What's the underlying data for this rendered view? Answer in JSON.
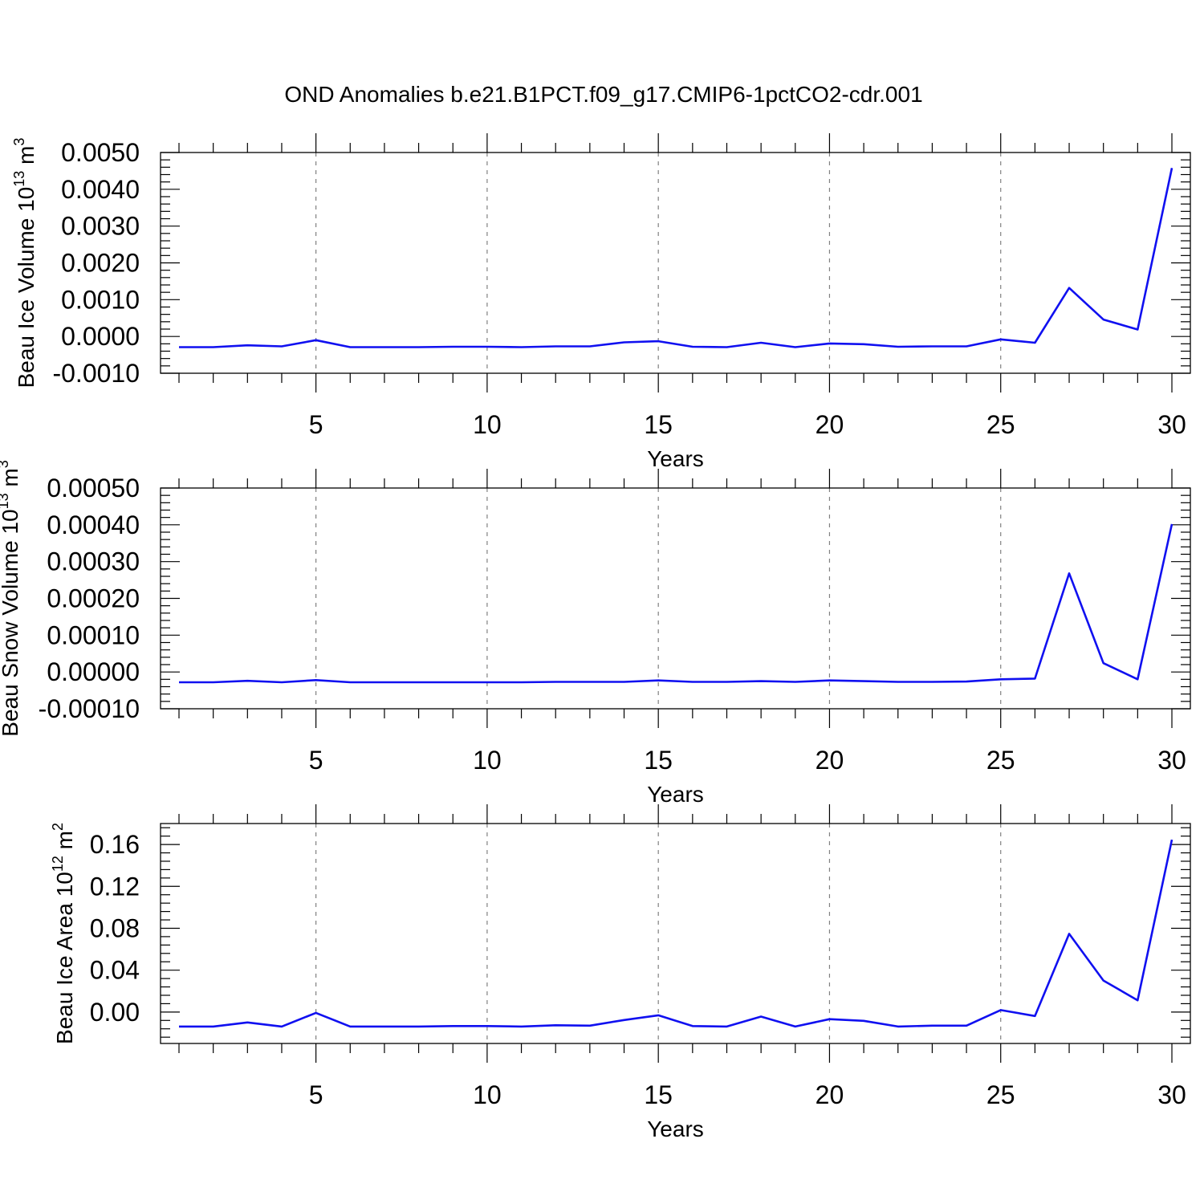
{
  "title": "OND Anomalies b.e21.B1PCT.f09_g17.CMIP6-1pctCO2-cdr.001",
  "colors": {
    "series_line": "#1010f0",
    "axis": "#000000",
    "grid": "#808080"
  },
  "chart_data": [
    {
      "type": "line",
      "ylabel": {
        "base": "Beau Ice Volume 10",
        "exp": "13",
        "unit": " m",
        "unit_exp": "3"
      },
      "xlabel": "Years",
      "xlim": [
        1,
        30
      ],
      "ylim": [
        -0.001,
        0.005
      ],
      "yticks": [
        -0.001,
        0.0,
        0.001,
        0.002,
        0.003,
        0.004,
        0.005
      ],
      "ytick_labels": [
        "-0.0010",
        "0.0000",
        "0.0010",
        "0.0020",
        "0.0030",
        "0.0040",
        "0.0050"
      ],
      "xticks": [
        5,
        10,
        15,
        20,
        25,
        30
      ],
      "xtick_labels": [
        "5",
        "10",
        "15",
        "20",
        "25",
        "30"
      ],
      "grid": "vertical dashed at major x ticks",
      "x": [
        1,
        2,
        3,
        4,
        5,
        6,
        7,
        8,
        9,
        10,
        11,
        12,
        13,
        14,
        15,
        16,
        17,
        18,
        19,
        20,
        21,
        22,
        23,
        24,
        25,
        26,
        27,
        28,
        29,
        30
      ],
      "values": [
        -0.00029,
        -0.00029,
        -0.00024,
        -0.00027,
        -0.0001,
        -0.00029,
        -0.00029,
        -0.00029,
        -0.00028,
        -0.00028,
        -0.00029,
        -0.00027,
        -0.00027,
        -0.00016,
        -0.00013,
        -0.00028,
        -0.00029,
        -0.00017,
        -0.00029,
        -0.00019,
        -0.00021,
        -0.00028,
        -0.00027,
        -0.00027,
        -8e-05,
        -0.00017,
        0.00132,
        0.00046,
        0.00019,
        0.00458
      ]
    },
    {
      "type": "line",
      "ylabel": {
        "base": "Beau Snow Volume 10",
        "exp": "13",
        "unit": " m",
        "unit_exp": "3"
      },
      "xlabel": "Years",
      "xlim": [
        1,
        30
      ],
      "ylim": [
        -0.0001,
        0.0005
      ],
      "yticks": [
        -0.0001,
        0.0,
        0.0001,
        0.0002,
        0.0003,
        0.0004,
        0.0005
      ],
      "ytick_labels": [
        "-0.00010",
        "0.00000",
        "0.00010",
        "0.00020",
        "0.00030",
        "0.00040",
        "0.00050"
      ],
      "xticks": [
        5,
        10,
        15,
        20,
        25,
        30
      ],
      "xtick_labels": [
        "5",
        "10",
        "15",
        "20",
        "25",
        "30"
      ],
      "grid": "vertical dashed at major x ticks",
      "x": [
        1,
        2,
        3,
        4,
        5,
        6,
        7,
        8,
        9,
        10,
        11,
        12,
        13,
        14,
        15,
        16,
        17,
        18,
        19,
        20,
        21,
        22,
        23,
        24,
        25,
        26,
        27,
        28,
        29,
        30
      ],
      "values": [
        -2.8e-05,
        -2.8e-05,
        -2.4e-05,
        -2.8e-05,
        -2.2e-05,
        -2.8e-05,
        -2.8e-05,
        -2.8e-05,
        -2.8e-05,
        -2.8e-05,
        -2.8e-05,
        -2.7e-05,
        -2.7e-05,
        -2.7e-05,
        -2.3e-05,
        -2.7e-05,
        -2.7e-05,
        -2.5e-05,
        -2.7e-05,
        -2.3e-05,
        -2.5e-05,
        -2.7e-05,
        -2.7e-05,
        -2.6e-05,
        -2e-05,
        -1.8e-05,
        0.000268,
        2.4e-05,
        -2e-05,
        0.000402
      ]
    },
    {
      "type": "line",
      "ylabel": {
        "base": "Beau Ice Area 10",
        "exp": "12",
        "unit": " m",
        "unit_exp": "2"
      },
      "xlabel": "Years",
      "xlim": [
        1,
        30
      ],
      "ylim": [
        -0.03,
        0.18
      ],
      "yticks": [
        0.0,
        0.04,
        0.08,
        0.12,
        0.16
      ],
      "ytick_labels": [
        "0.00",
        "0.04",
        "0.08",
        "0.12",
        "0.16"
      ],
      "xticks": [
        5,
        10,
        15,
        20,
        25,
        30
      ],
      "xtick_labels": [
        "5",
        "10",
        "15",
        "20",
        "25",
        "30"
      ],
      "grid": "vertical dashed at major x ticks",
      "x": [
        1,
        2,
        3,
        4,
        5,
        6,
        7,
        8,
        9,
        10,
        11,
        12,
        13,
        14,
        15,
        16,
        17,
        18,
        19,
        20,
        21,
        22,
        23,
        24,
        25,
        26,
        27,
        28,
        29,
        30
      ],
      "values": [
        -0.0138,
        -0.0138,
        -0.0099,
        -0.0138,
        -0.0008,
        -0.0138,
        -0.0138,
        -0.0138,
        -0.0134,
        -0.0134,
        -0.0138,
        -0.0126,
        -0.013,
        -0.0076,
        -0.0031,
        -0.0134,
        -0.0138,
        -0.0043,
        -0.0138,
        -0.0068,
        -0.0084,
        -0.0138,
        -0.013,
        -0.013,
        0.0019,
        -0.0038,
        0.0747,
        0.0301,
        0.0112,
        0.1646
      ]
    }
  ]
}
